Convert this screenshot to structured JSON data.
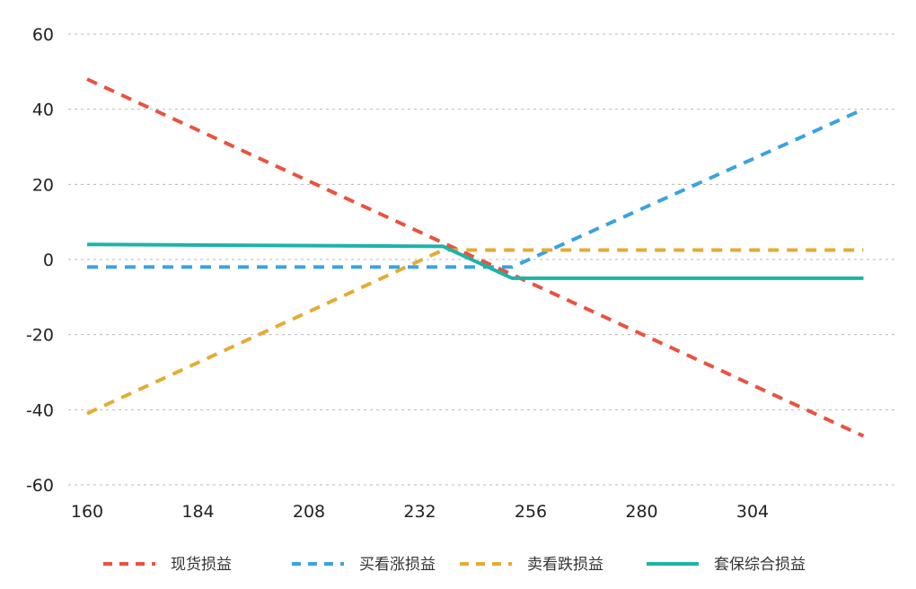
{
  "chart_data": {
    "type": "line",
    "title": "",
    "xlabel": "",
    "ylabel": "",
    "xlim": [
      160,
      328
    ],
    "ylim": [
      -60,
      60
    ],
    "grid": true,
    "legend_position": "bottom",
    "x_ticks": [
      "160",
      "184",
      "208",
      "232",
      "256",
      "280",
      "304"
    ],
    "y_ticks": [
      "60",
      "40",
      "20",
      "0",
      "-20",
      "-40",
      "-60"
    ],
    "series": [
      {
        "name": "现货损益",
        "color": "#e8533f",
        "style": "dashed",
        "points": [
          [
            160,
            48
          ],
          [
            328,
            -47
          ]
        ]
      },
      {
        "name": "买看涨损益",
        "color": "#3aa3e0",
        "style": "dashed",
        "points": [
          [
            160,
            -2
          ],
          [
            252,
            -2
          ],
          [
            328,
            40
          ]
        ]
      },
      {
        "name": "卖看跌损益",
        "color": "#e3ac33",
        "style": "dashed",
        "points": [
          [
            160,
            -41
          ],
          [
            237,
            2.5
          ],
          [
            328,
            2.5
          ]
        ]
      },
      {
        "name": "套保综合损益",
        "color": "#1fb3a8",
        "style": "solid",
        "points": [
          [
            160,
            4
          ],
          [
            237,
            3.5
          ],
          [
            252,
            -5
          ],
          [
            328,
            -5
          ]
        ]
      }
    ]
  }
}
